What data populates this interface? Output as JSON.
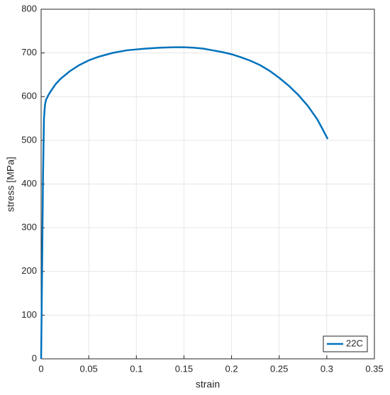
{
  "chart_data": {
    "type": "line",
    "xlabel": "strain",
    "ylabel": "stress [MPa]",
    "x": [
      0,
      0.001,
      0.002,
      0.003,
      0.004,
      0.005,
      0.0075,
      0.01,
      0.015,
      0.02,
      0.03,
      0.04,
      0.05,
      0.06,
      0.075,
      0.09,
      0.1,
      0.11,
      0.125,
      0.14,
      0.15,
      0.16,
      0.17,
      0.18,
      0.19,
      0.2,
      0.21,
      0.22,
      0.23,
      0.24,
      0.25,
      0.26,
      0.27,
      0.28,
      0.29,
      0.295,
      0.301
    ],
    "series": [
      {
        "name": "22C",
        "color": "#0072bd",
        "values": [
          0,
          200,
          420,
          550,
          580,
          592,
          603,
          612,
          628,
          640,
          658,
          672,
          683,
          691,
          700,
          706,
          708,
          710,
          712,
          713,
          713,
          712,
          710,
          706,
          702,
          697,
          690,
          682,
          672,
          659,
          643,
          625,
          604,
          579,
          548,
          528,
          503
        ]
      }
    ],
    "xlim": [
      0,
      0.35
    ],
    "xticks": [
      0,
      0.05,
      0.1,
      0.15,
      0.2,
      0.25,
      0.3,
      0.35
    ],
    "ylim": [
      0,
      800
    ],
    "yticks": [
      0,
      100,
      200,
      300,
      400,
      500,
      600,
      700,
      800
    ],
    "grid": true,
    "legend": "southeast"
  }
}
